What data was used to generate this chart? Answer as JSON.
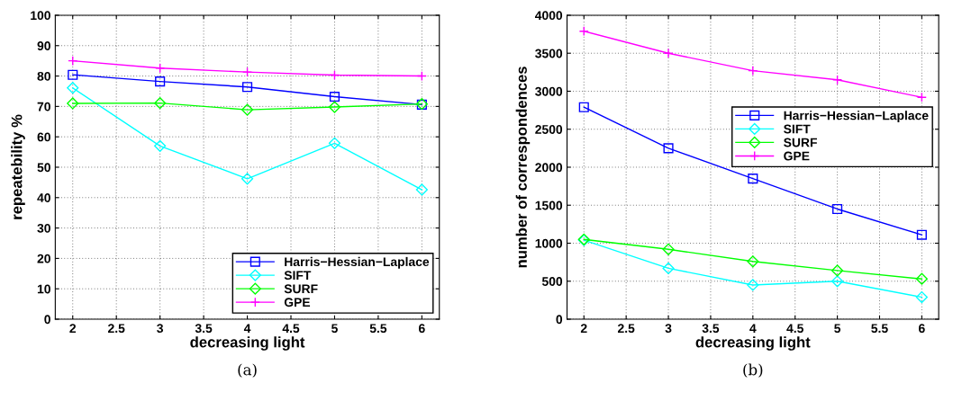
{
  "chart_data": [
    {
      "type": "line",
      "xlabel": "decreasing light",
      "ylabel": "repeatebility %",
      "x": [
        2,
        3,
        4,
        5,
        6
      ],
      "xlim": [
        1.8,
        6.2
      ],
      "xticks": [
        2,
        2.5,
        3,
        3.5,
        4,
        4.5,
        5,
        5.5,
        6
      ],
      "ylim": [
        0,
        100
      ],
      "yticks": [
        0,
        10,
        20,
        30,
        40,
        50,
        60,
        70,
        80,
        90,
        100
      ],
      "grid": true,
      "legend": "bottom right",
      "annotations": [
        "(a)"
      ],
      "series": [
        {
          "name": "Harris−Hessian−Laplace",
          "color": "#0000ff",
          "marker": "square",
          "values": [
            80.4,
            78.2,
            76.4,
            73.2,
            70.6
          ]
        },
        {
          "name": "SIFT",
          "color": "#00ffff",
          "marker": "diamond",
          "values": [
            76.1,
            57,
            46.2,
            57.9,
            42.6
          ]
        },
        {
          "name": "SURF",
          "color": "#00ff00",
          "marker": "diamond",
          "values": [
            71,
            71.1,
            68.9,
            69.8,
            70.8
          ]
        },
        {
          "name": "GPE",
          "color": "#ff00ff",
          "marker": "cross",
          "values": [
            85,
            82.6,
            81.3,
            80.3,
            80
          ]
        }
      ]
    },
    {
      "type": "line",
      "xlabel": "decreasing light",
      "ylabel": "number of correspondences",
      "x": [
        2,
        3,
        4,
        5,
        6
      ],
      "xlim": [
        1.8,
        6.2
      ],
      "xticks": [
        2,
        2.5,
        3,
        3.5,
        4,
        4.5,
        5,
        5.5,
        6
      ],
      "ylim": [
        0,
        4000
      ],
      "yticks": [
        0,
        500,
        1000,
        1500,
        2000,
        2500,
        3000,
        3500,
        4000
      ],
      "grid": true,
      "legend": "right",
      "annotations": [
        "(b)"
      ],
      "series": [
        {
          "name": "Harris−Hessian−Laplace",
          "color": "#0000ff",
          "marker": "square",
          "values": [
            2790,
            2250,
            1850,
            1450,
            1110
          ]
        },
        {
          "name": "SIFT",
          "color": "#00ffff",
          "marker": "diamond",
          "values": [
            1040,
            670,
            450,
            500,
            290
          ]
        },
        {
          "name": "SURF",
          "color": "#00ff00",
          "marker": "diamond",
          "values": [
            1050,
            920,
            760,
            640,
            530
          ]
        },
        {
          "name": "GPE",
          "color": "#ff00ff",
          "marker": "cross",
          "values": [
            3790,
            3500,
            3270,
            3150,
            2920
          ]
        }
      ]
    }
  ]
}
